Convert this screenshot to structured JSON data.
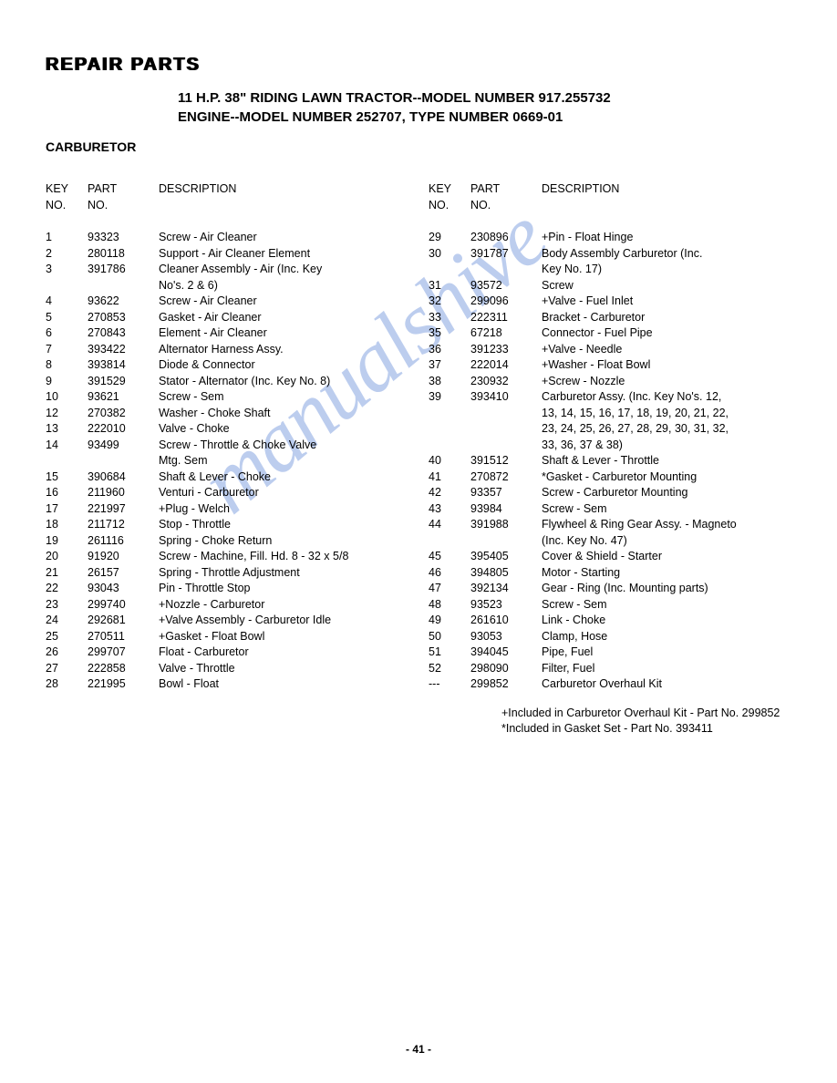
{
  "watermark": "manualshive",
  "main_title": "REPAIR PARTS",
  "sub_header_line1": "11 H.P. 38\" RIDING LAWN TRACTOR--MODEL NUMBER 917.255732",
  "sub_header_line2": "ENGINE--MODEL NUMBER 252707, TYPE NUMBER 0669-01",
  "section_title": "CARBURETOR",
  "headers": {
    "keyno_l1": "KEY",
    "keyno_l2": "NO.",
    "partno_l1": "PART",
    "partno_l2": "NO.",
    "desc": "DESCRIPTION"
  },
  "left_rows": [
    {
      "k": "1",
      "p": "93323",
      "d": "Screw - Air Cleaner"
    },
    {
      "k": "2",
      "p": "280118",
      "d": "Support - Air Cleaner Element"
    },
    {
      "k": "3",
      "p": "391786",
      "d": "Cleaner Assembly - Air (Inc. Key"
    },
    {
      "k": "",
      "p": "",
      "d": "No's. 2 & 6)"
    },
    {
      "k": "4",
      "p": "93622",
      "d": "Screw - Air Cleaner"
    },
    {
      "k": "5",
      "p": "270853",
      "d": "Gasket - Air Cleaner"
    },
    {
      "k": "6",
      "p": "270843",
      "d": "Element - Air Cleaner"
    },
    {
      "k": "7",
      "p": "393422",
      "d": "Alternator Harness Assy."
    },
    {
      "k": "8",
      "p": "393814",
      "d": "Diode & Connector"
    },
    {
      "k": "9",
      "p": "391529",
      "d": "Stator - Alternator (Inc. Key No. 8)"
    },
    {
      "k": "10",
      "p": "93621",
      "d": "Screw - Sem"
    },
    {
      "k": "12",
      "p": "270382",
      "d": "Washer - Choke Shaft"
    },
    {
      "k": "13",
      "p": "222010",
      "d": "Valve - Choke"
    },
    {
      "k": "14",
      "p": "93499",
      "d": "Screw - Throttle & Choke Valve"
    },
    {
      "k": "",
      "p": "",
      "d": "Mtg. Sem"
    },
    {
      "k": "15",
      "p": "390684",
      "d": "Shaft & Lever - Choke"
    },
    {
      "k": "16",
      "p": "211960",
      "d": "Venturi - Carburetor"
    },
    {
      "k": "17",
      "p": "221997",
      "d": "+Plug - Welch"
    },
    {
      "k": "18",
      "p": "211712",
      "d": "Stop - Throttle"
    },
    {
      "k": "19",
      "p": "261116",
      "d": "Spring - Choke Return"
    },
    {
      "k": "20",
      "p": "91920",
      "d": "Screw - Machine, Fill. Hd. 8 - 32 x 5/8"
    },
    {
      "k": "21",
      "p": "26157",
      "d": "Spring - Throttle Adjustment"
    },
    {
      "k": "22",
      "p": "93043",
      "d": "Pin - Throttle Stop"
    },
    {
      "k": "23",
      "p": "299740",
      "d": "+Nozzle - Carburetor"
    },
    {
      "k": "24",
      "p": "292681",
      "d": "+Valve Assembly - Carburetor Idle"
    },
    {
      "k": "25",
      "p": "270511",
      "d": "+Gasket - Float Bowl"
    },
    {
      "k": "26",
      "p": "299707",
      "d": "Float - Carburetor"
    },
    {
      "k": "27",
      "p": "222858",
      "d": "Valve - Throttle"
    },
    {
      "k": "28",
      "p": "221995",
      "d": "Bowl - Float"
    }
  ],
  "right_rows": [
    {
      "k": "29",
      "p": "230896",
      "d": "+Pin - Float Hinge"
    },
    {
      "k": "30",
      "p": "391787",
      "d": "Body Assembly Carburetor (Inc."
    },
    {
      "k": "",
      "p": "",
      "d": "Key No. 17)"
    },
    {
      "k": "31",
      "p": "93572",
      "d": "Screw"
    },
    {
      "k": "32",
      "p": "299096",
      "d": "+Valve - Fuel Inlet"
    },
    {
      "k": "33",
      "p": "222311",
      "d": "Bracket - Carburetor"
    },
    {
      "k": "35",
      "p": "67218",
      "d": "Connector - Fuel Pipe"
    },
    {
      "k": "36",
      "p": "391233",
      "d": "+Valve - Needle"
    },
    {
      "k": "37",
      "p": "222014",
      "d": "+Washer - Float Bowl"
    },
    {
      "k": "38",
      "p": "230932",
      "d": "+Screw - Nozzle"
    },
    {
      "k": "39",
      "p": "393410",
      "d": "Carburetor Assy. (Inc. Key No's. 12,"
    },
    {
      "k": "",
      "p": "",
      "d": "13, 14, 15, 16, 17, 18, 19, 20, 21, 22,"
    },
    {
      "k": "",
      "p": "",
      "d": "23, 24, 25, 26, 27, 28, 29, 30, 31, 32,"
    },
    {
      "k": "",
      "p": "",
      "d": "33, 36, 37 & 38)"
    },
    {
      "k": "40",
      "p": "391512",
      "d": "Shaft & Lever - Throttle"
    },
    {
      "k": "41",
      "p": "270872",
      "d": "*Gasket - Carburetor Mounting"
    },
    {
      "k": "42",
      "p": "93357",
      "d": "Screw - Carburetor Mounting"
    },
    {
      "k": "43",
      "p": "93984",
      "d": "Screw - Sem"
    },
    {
      "k": "44",
      "p": "391988",
      "d": "Flywheel & Ring Gear Assy. - Magneto"
    },
    {
      "k": "",
      "p": "",
      "d": "(Inc. Key No. 47)"
    },
    {
      "k": "45",
      "p": "395405",
      "d": "Cover & Shield - Starter"
    },
    {
      "k": "46",
      "p": "394805",
      "d": "Motor - Starting"
    },
    {
      "k": "47",
      "p": "392134",
      "d": "Gear - Ring (Inc. Mounting parts)"
    },
    {
      "k": "48",
      "p": "93523",
      "d": "Screw - Sem"
    },
    {
      "k": "49",
      "p": "261610",
      "d": "Link - Choke"
    },
    {
      "k": "50",
      "p": "93053",
      "d": "Clamp, Hose"
    },
    {
      "k": "51",
      "p": "394045",
      "d": "Pipe, Fuel"
    },
    {
      "k": "52",
      "p": "298090",
      "d": "Filter, Fuel"
    },
    {
      "k": "---",
      "p": "299852",
      "d": "Carburetor Overhaul Kit"
    }
  ],
  "footnote1": "+Included in Carburetor Overhaul Kit - Part No. 299852",
  "footnote2": "*Included in Gasket Set - Part No. 393411",
  "page_number": "- 41 -"
}
